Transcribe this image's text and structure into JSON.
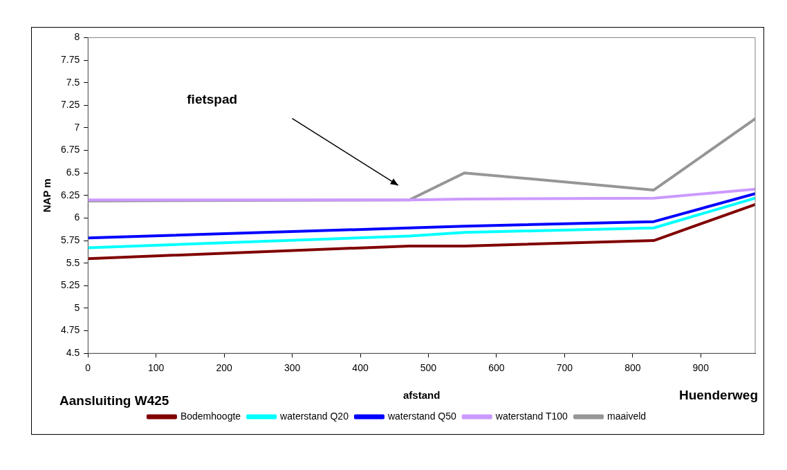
{
  "chart_data": {
    "type": "line",
    "xlabel": "afstand",
    "ylabel": "NAP m",
    "x": [
      0,
      472,
      553,
      831,
      980
    ],
    "series": [
      {
        "name": "Bodemhoogte",
        "color": "#800000",
        "values": [
          5.55,
          5.69,
          5.69,
          5.75,
          6.15
        ]
      },
      {
        "name": "waterstand Q20",
        "color": "#00ffff",
        "values": [
          5.67,
          5.8,
          5.84,
          5.89,
          6.22
        ]
      },
      {
        "name": "waterstand Q50",
        "color": "#0000ff",
        "values": [
          5.78,
          5.89,
          5.91,
          5.96,
          6.27
        ]
      },
      {
        "name": "waterstand T100",
        "color": "#cc99ff",
        "values": [
          6.2,
          6.2,
          6.21,
          6.22,
          6.32
        ]
      },
      {
        "name": "maaiveld",
        "color": "#969696",
        "values": [
          6.19,
          6.2,
          6.5,
          6.31,
          7.1
        ]
      }
    ],
    "xlim": [
      0,
      980
    ],
    "xticks": [
      0,
      100,
      200,
      300,
      400,
      500,
      600,
      700,
      800,
      900
    ],
    "ylim": [
      4.5,
      8
    ],
    "yticks": [
      4.5,
      4.75,
      5,
      5.25,
      5.5,
      5.75,
      6,
      6.25,
      6.5,
      6.75,
      7,
      7.25,
      7.5,
      7.75,
      8
    ],
    "grid": false,
    "legend": "bottom",
    "marker": "none",
    "line_style": "solid",
    "annotations": [
      "fietspad",
      "Aansluiting W425",
      "Huenderweg"
    ]
  }
}
